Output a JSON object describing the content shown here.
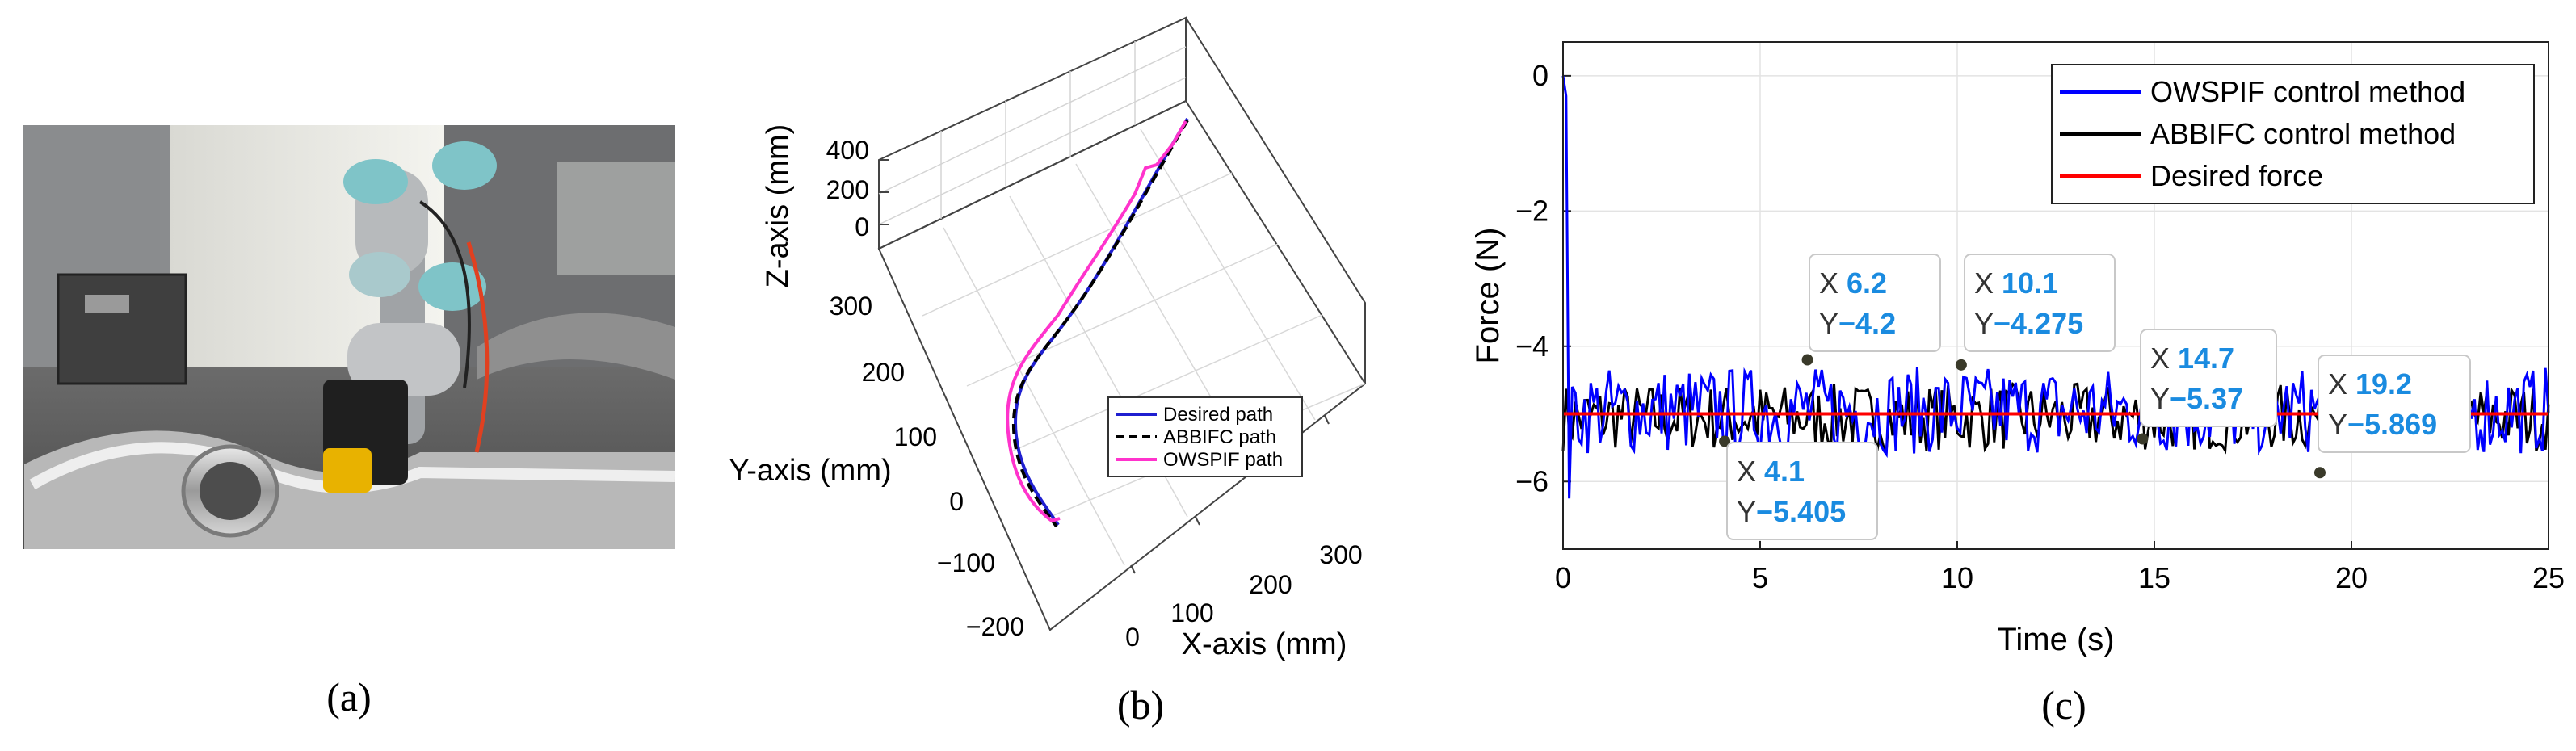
{
  "panels": {
    "a": {
      "caption": "(a)"
    },
    "b": {
      "caption": "(b)",
      "z_axis_label": "Z-axis (mm)",
      "y_axis_label": "Y-axis (mm)",
      "x_axis_label": "X-axis (mm)",
      "z_ticks": [
        "400",
        "200",
        "0"
      ],
      "y_ticks": [
        "300",
        "200",
        "100",
        "0",
        "−100",
        "−200"
      ],
      "x_ticks": [
        "0",
        "100",
        "200",
        "300"
      ],
      "legend": [
        "Desired path",
        "ABBIFC path",
        "OWSPIF path"
      ],
      "colors": {
        "desired": "#1f1fd0",
        "abbifc": "#000000",
        "owspif": "#ff33cc"
      }
    },
    "c": {
      "caption": "(c)"
    }
  },
  "chart_data": {
    "type": "line",
    "xlabel": "Time (s)",
    "ylabel": "Force (N)",
    "xlim": [
      0,
      25
    ],
    "ylim": [
      -7,
      0.5
    ],
    "x_ticks": [
      0,
      5,
      10,
      15,
      20,
      25
    ],
    "y_ticks": [
      0,
      -2,
      -4,
      -6
    ],
    "grid": true,
    "legend_position": "top-right",
    "series": [
      {
        "name": "OWSPIF control method",
        "color": "#0000ff",
        "style": "noisy oscillation around -5 N with initial spike at t=0 from 0 N down to about -6.3 N"
      },
      {
        "name": "ABBIFC control method",
        "color": "#000000",
        "style": "noisy oscillation around -5 N"
      },
      {
        "name": "Desired force",
        "color": "#ff0000",
        "value": -5
      }
    ],
    "datatips": [
      {
        "x_label": "X",
        "x": "6.2",
        "y_label": "Y",
        "y": "−4.2",
        "px": 6.2,
        "py": -4.2
      },
      {
        "x_label": "X",
        "x": "10.1",
        "y_label": "Y",
        "y": "−4.275",
        "px": 10.1,
        "py": -4.275
      },
      {
        "x_label": "X",
        "x": "4.1",
        "y_label": "Y",
        "y": "−5.405",
        "px": 4.1,
        "py": -5.405
      },
      {
        "x_label": "X",
        "x": "14.7",
        "y_label": "Y",
        "y": "−5.37",
        "px": 14.7,
        "py": -5.37
      },
      {
        "x_label": "X",
        "x": "19.2",
        "y_label": "Y",
        "y": "−5.869",
        "px": 19.2,
        "py": -5.869
      }
    ]
  }
}
